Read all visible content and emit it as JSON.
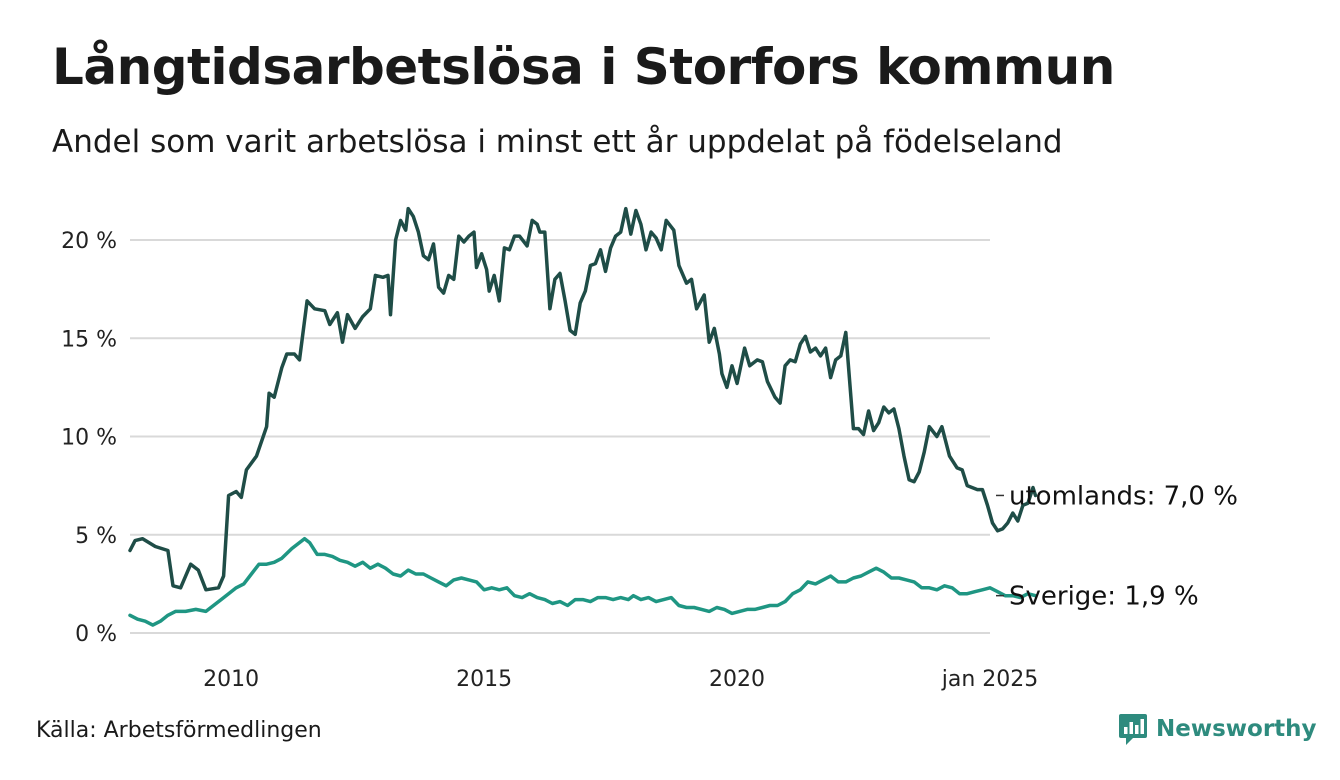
{
  "header": {
    "title": "Långtidsarbetslösa i Storfors kommun",
    "subtitle": "Andel som varit arbetslösa i minst ett år uppdelat på födelseland"
  },
  "footer": {
    "source": "Källa: Arbetsförmedlingen",
    "brand": "Newsworthy"
  },
  "colors": {
    "utomlands": "#1f4d47",
    "sverige": "#1f9683",
    "grid": "#d9d9d9",
    "brand": "#2e8b7e"
  },
  "chart_data": {
    "type": "line",
    "title": "Långtidsarbetslösa i Storfors kommun",
    "subtitle": "Andel som varit arbetslösa i minst ett år uppdelat på födelseland",
    "xlabel": "",
    "ylabel": "",
    "x_range": [
      2008.0,
      2025.0
    ],
    "ylim": [
      0,
      22
    ],
    "y_ticks": [
      0,
      5,
      10,
      15,
      20
    ],
    "y_tick_labels": [
      "0 %",
      "5 %",
      "10 %",
      "15 %",
      "20 %"
    ],
    "x_ticks": [
      2010,
      2015,
      2020,
      2025.0
    ],
    "x_tick_labels": [
      "2010",
      "2015",
      "2020",
      "jan 2025"
    ],
    "grid": true,
    "series": [
      {
        "name": "utomlands",
        "end_label": "utomlands: 7,0 %",
        "points": [
          [
            2008.0,
            4.2
          ],
          [
            2008.1,
            4.7
          ],
          [
            2008.25,
            4.8
          ],
          [
            2008.5,
            4.4
          ],
          [
            2008.75,
            4.2
          ],
          [
            2008.85,
            2.4
          ],
          [
            2009.0,
            2.3
          ],
          [
            2009.2,
            3.5
          ],
          [
            2009.35,
            3.2
          ],
          [
            2009.5,
            2.2
          ],
          [
            2009.75,
            2.3
          ],
          [
            2009.85,
            2.9
          ],
          [
            2009.95,
            7.0
          ],
          [
            2010.1,
            7.2
          ],
          [
            2010.2,
            6.9
          ],
          [
            2010.3,
            8.3
          ],
          [
            2010.5,
            9.0
          ],
          [
            2010.7,
            10.5
          ],
          [
            2010.75,
            12.2
          ],
          [
            2010.85,
            12.0
          ],
          [
            2011.0,
            13.5
          ],
          [
            2011.1,
            14.2
          ],
          [
            2011.25,
            14.2
          ],
          [
            2011.35,
            13.9
          ],
          [
            2011.5,
            16.9
          ],
          [
            2011.65,
            16.5
          ],
          [
            2011.85,
            16.4
          ],
          [
            2011.95,
            15.7
          ],
          [
            2012.1,
            16.3
          ],
          [
            2012.2,
            14.8
          ],
          [
            2012.3,
            16.2
          ],
          [
            2012.45,
            15.5
          ],
          [
            2012.6,
            16.1
          ],
          [
            2012.75,
            16.5
          ],
          [
            2012.85,
            18.2
          ],
          [
            2013.0,
            18.1
          ],
          [
            2013.1,
            18.2
          ],
          [
            2013.15,
            16.2
          ],
          [
            2013.25,
            20.0
          ],
          [
            2013.35,
            21.0
          ],
          [
            2013.45,
            20.5
          ],
          [
            2013.5,
            21.6
          ],
          [
            2013.6,
            21.2
          ],
          [
            2013.7,
            20.4
          ],
          [
            2013.8,
            19.2
          ],
          [
            2013.9,
            19.0
          ],
          [
            2014.0,
            19.8
          ],
          [
            2014.1,
            17.6
          ],
          [
            2014.2,
            17.3
          ],
          [
            2014.3,
            18.2
          ],
          [
            2014.4,
            18.0
          ],
          [
            2014.5,
            20.2
          ],
          [
            2014.6,
            19.9
          ],
          [
            2014.7,
            20.2
          ],
          [
            2014.8,
            20.4
          ],
          [
            2014.85,
            18.6
          ],
          [
            2014.95,
            19.3
          ],
          [
            2015.05,
            18.5
          ],
          [
            2015.1,
            17.4
          ],
          [
            2015.2,
            18.2
          ],
          [
            2015.3,
            16.9
          ],
          [
            2015.4,
            19.6
          ],
          [
            2015.5,
            19.5
          ],
          [
            2015.6,
            20.2
          ],
          [
            2015.7,
            20.2
          ],
          [
            2015.85,
            19.7
          ],
          [
            2015.95,
            21.0
          ],
          [
            2016.05,
            20.8
          ],
          [
            2016.1,
            20.4
          ],
          [
            2016.2,
            20.4
          ],
          [
            2016.3,
            16.5
          ],
          [
            2016.4,
            18.0
          ],
          [
            2016.5,
            18.3
          ],
          [
            2016.6,
            16.9
          ],
          [
            2016.7,
            15.4
          ],
          [
            2016.8,
            15.2
          ],
          [
            2016.9,
            16.8
          ],
          [
            2017.0,
            17.4
          ],
          [
            2017.1,
            18.7
          ],
          [
            2017.2,
            18.8
          ],
          [
            2017.3,
            19.5
          ],
          [
            2017.4,
            18.4
          ],
          [
            2017.5,
            19.6
          ],
          [
            2017.6,
            20.2
          ],
          [
            2017.7,
            20.4
          ],
          [
            2017.8,
            21.6
          ],
          [
            2017.9,
            20.3
          ],
          [
            2018.0,
            21.5
          ],
          [
            2018.1,
            20.8
          ],
          [
            2018.2,
            19.5
          ],
          [
            2018.3,
            20.4
          ],
          [
            2018.4,
            20.1
          ],
          [
            2018.5,
            19.5
          ],
          [
            2018.6,
            21.0
          ],
          [
            2018.75,
            20.5
          ],
          [
            2018.85,
            18.7
          ],
          [
            2019.0,
            17.8
          ],
          [
            2019.1,
            18.0
          ],
          [
            2019.2,
            16.5
          ],
          [
            2019.35,
            17.2
          ],
          [
            2019.45,
            14.8
          ],
          [
            2019.55,
            15.5
          ],
          [
            2019.65,
            14.2
          ],
          [
            2019.7,
            13.2
          ],
          [
            2019.8,
            12.5
          ],
          [
            2019.9,
            13.6
          ],
          [
            2020.0,
            12.7
          ],
          [
            2020.15,
            14.5
          ],
          [
            2020.25,
            13.6
          ],
          [
            2020.4,
            13.9
          ],
          [
            2020.5,
            13.8
          ],
          [
            2020.6,
            12.8
          ],
          [
            2020.75,
            12.0
          ],
          [
            2020.85,
            11.7
          ],
          [
            2020.95,
            13.6
          ],
          [
            2021.05,
            13.9
          ],
          [
            2021.15,
            13.8
          ],
          [
            2021.25,
            14.7
          ],
          [
            2021.35,
            15.1
          ],
          [
            2021.45,
            14.3
          ],
          [
            2021.55,
            14.5
          ],
          [
            2021.65,
            14.1
          ],
          [
            2021.75,
            14.5
          ],
          [
            2021.85,
            13.0
          ],
          [
            2021.95,
            13.9
          ],
          [
            2022.05,
            14.1
          ],
          [
            2022.15,
            15.3
          ],
          [
            2022.3,
            10.4
          ],
          [
            2022.4,
            10.4
          ],
          [
            2022.5,
            10.1
          ],
          [
            2022.6,
            11.3
          ],
          [
            2022.7,
            10.3
          ],
          [
            2022.8,
            10.7
          ],
          [
            2022.9,
            11.5
          ],
          [
            2023.0,
            11.2
          ],
          [
            2023.1,
            11.4
          ],
          [
            2023.2,
            10.4
          ],
          [
            2023.3,
            9.0
          ],
          [
            2023.4,
            7.8
          ],
          [
            2023.5,
            7.7
          ],
          [
            2023.6,
            8.2
          ],
          [
            2023.7,
            9.2
          ],
          [
            2023.8,
            10.5
          ],
          [
            2023.95,
            10.0
          ],
          [
            2024.05,
            10.5
          ],
          [
            2024.2,
            9.0
          ],
          [
            2024.35,
            8.4
          ],
          [
            2024.45,
            8.3
          ],
          [
            2024.55,
            7.5
          ],
          [
            2024.65,
            7.4
          ],
          [
            2024.75,
            7.3
          ],
          [
            2024.85,
            7.3
          ],
          [
            2024.95,
            6.5
          ],
          [
            2025.05,
            5.6
          ],
          [
            2025.15,
            5.2
          ],
          [
            2025.25,
            5.3
          ],
          [
            2025.35,
            5.6
          ],
          [
            2025.45,
            6.1
          ],
          [
            2025.55,
            5.7
          ],
          [
            2025.65,
            6.5
          ],
          [
            2025.75,
            6.6
          ],
          [
            2025.85,
            7.4
          ],
          [
            2025.9,
            7.0
          ]
        ]
      },
      {
        "name": "Sverige",
        "end_label": "Sverige: 1,9 %",
        "points": [
          [
            2008.0,
            0.9
          ],
          [
            2008.15,
            0.7
          ],
          [
            2008.3,
            0.6
          ],
          [
            2008.45,
            0.4
          ],
          [
            2008.6,
            0.6
          ],
          [
            2008.75,
            0.9
          ],
          [
            2008.9,
            1.1
          ],
          [
            2009.1,
            1.1
          ],
          [
            2009.3,
            1.2
          ],
          [
            2009.5,
            1.1
          ],
          [
            2009.65,
            1.4
          ],
          [
            2009.8,
            1.7
          ],
          [
            2009.95,
            2.0
          ],
          [
            2010.1,
            2.3
          ],
          [
            2010.25,
            2.5
          ],
          [
            2010.4,
            3.0
          ],
          [
            2010.55,
            3.5
          ],
          [
            2010.7,
            3.5
          ],
          [
            2010.85,
            3.6
          ],
          [
            2011.0,
            3.8
          ],
          [
            2011.2,
            4.3
          ],
          [
            2011.35,
            4.6
          ],
          [
            2011.45,
            4.8
          ],
          [
            2011.55,
            4.6
          ],
          [
            2011.7,
            4.0
          ],
          [
            2011.85,
            4.0
          ],
          [
            2012.0,
            3.9
          ],
          [
            2012.15,
            3.7
          ],
          [
            2012.3,
            3.6
          ],
          [
            2012.45,
            3.4
          ],
          [
            2012.6,
            3.6
          ],
          [
            2012.75,
            3.3
          ],
          [
            2012.9,
            3.5
          ],
          [
            2013.05,
            3.3
          ],
          [
            2013.2,
            3.0
          ],
          [
            2013.35,
            2.9
          ],
          [
            2013.5,
            3.2
          ],
          [
            2013.65,
            3.0
          ],
          [
            2013.8,
            3.0
          ],
          [
            2013.95,
            2.8
          ],
          [
            2014.1,
            2.6
          ],
          [
            2014.25,
            2.4
          ],
          [
            2014.4,
            2.7
          ],
          [
            2014.55,
            2.8
          ],
          [
            2014.7,
            2.7
          ],
          [
            2014.85,
            2.6
          ],
          [
            2015.0,
            2.2
          ],
          [
            2015.15,
            2.3
          ],
          [
            2015.3,
            2.2
          ],
          [
            2015.45,
            2.3
          ],
          [
            2015.6,
            1.9
          ],
          [
            2015.75,
            1.8
          ],
          [
            2015.9,
            2.0
          ],
          [
            2016.05,
            1.8
          ],
          [
            2016.2,
            1.7
          ],
          [
            2016.35,
            1.5
          ],
          [
            2016.5,
            1.6
          ],
          [
            2016.65,
            1.4
          ],
          [
            2016.8,
            1.7
          ],
          [
            2016.95,
            1.7
          ],
          [
            2017.1,
            1.6
          ],
          [
            2017.25,
            1.8
          ],
          [
            2017.4,
            1.8
          ],
          [
            2017.55,
            1.7
          ],
          [
            2017.7,
            1.8
          ],
          [
            2017.85,
            1.7
          ],
          [
            2017.95,
            1.9
          ],
          [
            2018.1,
            1.7
          ],
          [
            2018.25,
            1.8
          ],
          [
            2018.4,
            1.6
          ],
          [
            2018.55,
            1.7
          ],
          [
            2018.7,
            1.8
          ],
          [
            2018.85,
            1.4
          ],
          [
            2019.0,
            1.3
          ],
          [
            2019.15,
            1.3
          ],
          [
            2019.3,
            1.2
          ],
          [
            2019.45,
            1.1
          ],
          [
            2019.6,
            1.3
          ],
          [
            2019.75,
            1.2
          ],
          [
            2019.9,
            1.0
          ],
          [
            2020.05,
            1.1
          ],
          [
            2020.2,
            1.2
          ],
          [
            2020.35,
            1.2
          ],
          [
            2020.5,
            1.3
          ],
          [
            2020.65,
            1.4
          ],
          [
            2020.8,
            1.4
          ],
          [
            2020.95,
            1.6
          ],
          [
            2021.1,
            2.0
          ],
          [
            2021.25,
            2.2
          ],
          [
            2021.4,
            2.6
          ],
          [
            2021.55,
            2.5
          ],
          [
            2021.7,
            2.7
          ],
          [
            2021.85,
            2.9
          ],
          [
            2022.0,
            2.6
          ],
          [
            2022.15,
            2.6
          ],
          [
            2022.3,
            2.8
          ],
          [
            2022.45,
            2.9
          ],
          [
            2022.6,
            3.1
          ],
          [
            2022.75,
            3.3
          ],
          [
            2022.9,
            3.1
          ],
          [
            2023.05,
            2.8
          ],
          [
            2023.2,
            2.8
          ],
          [
            2023.35,
            2.7
          ],
          [
            2023.5,
            2.6
          ],
          [
            2023.65,
            2.3
          ],
          [
            2023.8,
            2.3
          ],
          [
            2023.95,
            2.2
          ],
          [
            2024.1,
            2.4
          ],
          [
            2024.25,
            2.3
          ],
          [
            2024.4,
            2.0
          ],
          [
            2024.55,
            2.0
          ],
          [
            2024.7,
            2.1
          ],
          [
            2024.85,
            2.2
          ],
          [
            2025.0,
            2.3
          ],
          [
            2025.15,
            2.1
          ],
          [
            2025.3,
            1.9
          ],
          [
            2025.45,
            1.9
          ],
          [
            2025.6,
            1.8
          ],
          [
            2025.75,
            2.0
          ],
          [
            2025.9,
            1.9
          ]
        ]
      }
    ]
  }
}
